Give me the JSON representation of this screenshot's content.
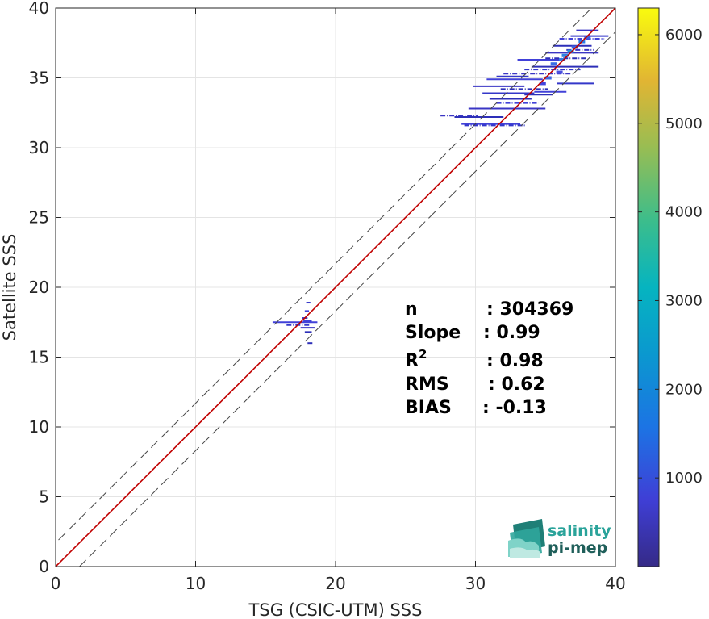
{
  "chart_data": {
    "type": "scatter",
    "subtype": "density-scatter (2D histogram)",
    "xlabel": "TSG (CSIC-UTM) SSS",
    "ylabel": "Satellite SSS",
    "xlim": [
      0,
      40
    ],
    "ylim": [
      0,
      40
    ],
    "xticks": [
      0,
      10,
      20,
      30,
      40
    ],
    "yticks": [
      0,
      5,
      10,
      15,
      20,
      25,
      30,
      35,
      40
    ],
    "grid": true,
    "colorbar": {
      "colormap": "parula",
      "range": [
        0,
        6300
      ],
      "ticks": [
        1000,
        2000,
        3000,
        4000,
        5000,
        6000
      ]
    },
    "reference_lines": [
      {
        "name": "1:1",
        "color": "#c00000",
        "style": "solid",
        "intercept": 0,
        "slope": 1
      },
      {
        "name": "+1.7",
        "color": "#444444",
        "style": "dashed",
        "intercept": 1.7,
        "slope": 1
      },
      {
        "name": "-1.7",
        "color": "#444444",
        "style": "dashed",
        "intercept": -1.7,
        "slope": 1
      }
    ],
    "clusters": [
      {
        "name": "high salinity",
        "x_range": [
          28,
          39
        ],
        "y_range": [
          31.5,
          38.5
        ],
        "peak_count": 1200
      },
      {
        "name": "low salinity",
        "x_range": [
          15.5,
          18.5
        ],
        "y_range": [
          16,
          19
        ],
        "peak_count": 300
      }
    ],
    "segments": [
      {
        "x": [
          27.5,
          30.2
        ],
        "y": 32.3
      },
      {
        "x": [
          28.5,
          32.0
        ],
        "y": 32.2
      },
      {
        "x": [
          29.0,
          33.2
        ],
        "y": 31.7
      },
      {
        "x": [
          29.2,
          33.6
        ],
        "y": 31.6
      },
      {
        "x": [
          29.5,
          35.0
        ],
        "y": 32.8
      },
      {
        "x": [
          31.0,
          34.0
        ],
        "y": 33.5
      },
      {
        "x": [
          31.5,
          34.5
        ],
        "y": 33.2
      },
      {
        "x": [
          30.5,
          34.2
        ],
        "y": 33.9
      },
      {
        "x": [
          29.8,
          33.5
        ],
        "y": 34.4
      },
      {
        "x": [
          31.8,
          35.2
        ],
        "y": 34.2
      },
      {
        "x": [
          30.8,
          34.8
        ],
        "y": 34.9
      },
      {
        "x": [
          31.5,
          33.8
        ],
        "y": 35.1
      },
      {
        "x": [
          32.0,
          36.8
        ],
        "y": 35.3
      },
      {
        "x": [
          34.0,
          38.8
        ],
        "y": 35.8
      },
      {
        "x": [
          33.0,
          36.2
        ],
        "y": 36.3
      },
      {
        "x": [
          33.5,
          37.5
        ],
        "y": 35.6
      },
      {
        "x": [
          35.0,
          38.8
        ],
        "y": 36.8
      },
      {
        "x": [
          35.5,
          38.3
        ],
        "y": 37.3
      },
      {
        "x": [
          36.0,
          39.2
        ],
        "y": 37.8
      },
      {
        "x": [
          36.8,
          39.5
        ],
        "y": 38.0
      },
      {
        "x": [
          37.2,
          38.8
        ],
        "y": 38.4
      },
      {
        "x": [
          35.0,
          38.0
        ],
        "y": 36.4
      },
      {
        "x": [
          34.2,
          36.5
        ],
        "y": 34.0
      },
      {
        "x": [
          35.8,
          38.5
        ],
        "y": 34.6
      },
      {
        "x": [
          36.5,
          38.5
        ],
        "y": 37.0
      },
      {
        "x": [
          33.5,
          35.5
        ],
        "y": 33.8
      },
      {
        "x": [
          15.5,
          18.7
        ],
        "y": 17.5
      },
      {
        "x": [
          16.5,
          18.2
        ],
        "y": 17.3
      },
      {
        "x": [
          17.5,
          18.5
        ],
        "y": 17.1
      },
      {
        "x": [
          17.8,
          18.3
        ],
        "y": 16.8
      },
      {
        "x": [
          17.8,
          18.1
        ],
        "y": 18.3
      },
      {
        "x": [
          17.9,
          18.2
        ],
        "y": 18.9
      },
      {
        "x": [
          17.6,
          18.0
        ],
        "y": 17.8
      },
      {
        "x": [
          18.0,
          18.4
        ],
        "y": 16.0
      },
      {
        "x": [
          17.7,
          18.3
        ],
        "y": 17.6
      }
    ],
    "stats": [
      {
        "label": "n",
        "value": ": 304369"
      },
      {
        "label": "Slope",
        "value": ": 0.99"
      },
      {
        "label": "R",
        "sup": "2",
        "value": ": 0.98"
      },
      {
        "label": "RMS",
        "value": ": 0.62"
      },
      {
        "label": "BIAS",
        "value": ": -0.13"
      }
    ]
  },
  "logo": {
    "line1": "salinity",
    "line2": "pi-mep",
    "color1": "#2aa39a",
    "color2": "#1f5f5a"
  }
}
